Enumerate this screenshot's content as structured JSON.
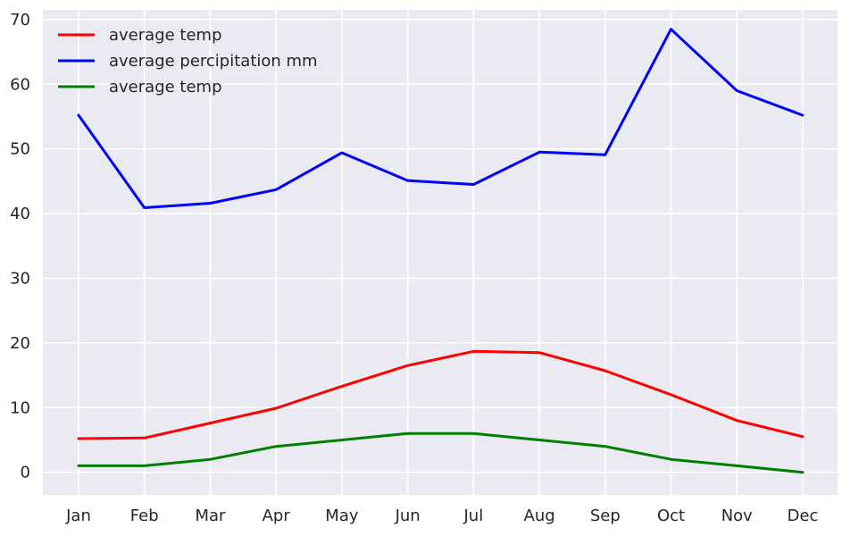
{
  "chart_data": {
    "type": "line",
    "title": "",
    "xlabel": "",
    "ylabel": "",
    "categories": [
      "Jan",
      "Feb",
      "Mar",
      "Apr",
      "May",
      "Jun",
      "Jul",
      "Aug",
      "Sep",
      "Oct",
      "Nov",
      "Dec"
    ],
    "ylim": [
      -3.5,
      71.5
    ],
    "yticks": [
      0,
      10,
      20,
      30,
      40,
      50,
      60,
      70
    ],
    "grid": true,
    "legend_position": "top-left",
    "background_color": "#eaeaf2",
    "grid_color": "#ffffff",
    "series": [
      {
        "name": "average temp",
        "color": "#ff0000",
        "values": [
          5.2,
          5.3,
          7.6,
          9.9,
          13.3,
          16.5,
          18.7,
          18.5,
          15.7,
          12.0,
          8.0,
          5.5
        ]
      },
      {
        "name": "average percipitation mm",
        "color": "#0000ff",
        "values": [
          55.2,
          40.9,
          41.6,
          43.7,
          49.4,
          45.1,
          44.5,
          49.5,
          49.1,
          68.5,
          59.0,
          55.2
        ]
      },
      {
        "name": "average temp",
        "color": "#008000",
        "values": [
          1,
          1,
          2,
          4,
          5,
          6,
          6,
          5,
          4,
          2,
          1,
          0
        ]
      }
    ]
  }
}
